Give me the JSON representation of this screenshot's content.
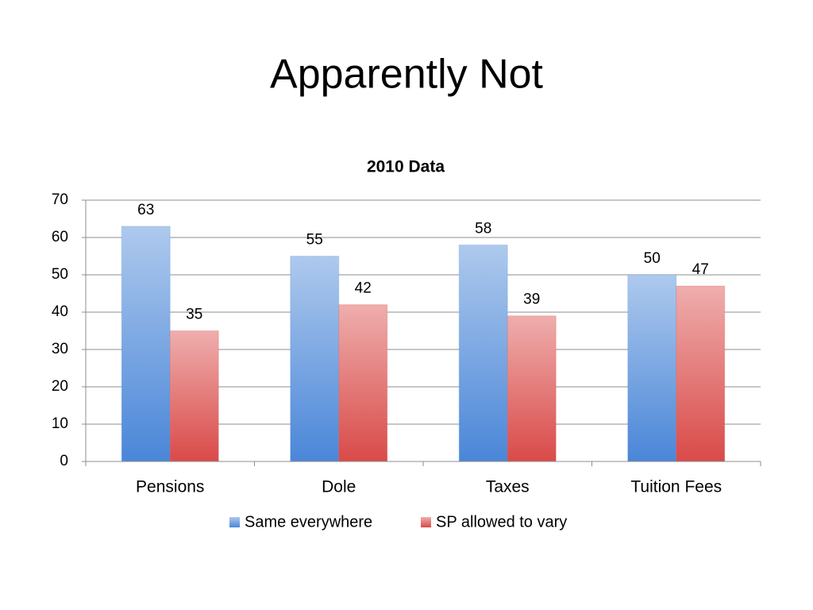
{
  "slide_title": "Apparently Not",
  "chart_data": {
    "type": "bar",
    "title": "2010 Data",
    "categories": [
      "Pensions",
      "Dole",
      "Taxes",
      "Tuition Fees"
    ],
    "series": [
      {
        "name": "Same everywhere",
        "color": "#4a86d8",
        "values": [
          63,
          55,
          58,
          50
        ]
      },
      {
        "name": "SP allowed to vary",
        "color": "#d94a48",
        "values": [
          35,
          42,
          39,
          47
        ]
      }
    ],
    "ylim": [
      0,
      70
    ],
    "yticks": [
      0,
      10,
      20,
      30,
      40,
      50,
      60,
      70
    ],
    "grid": true,
    "legend": "bottom"
  }
}
